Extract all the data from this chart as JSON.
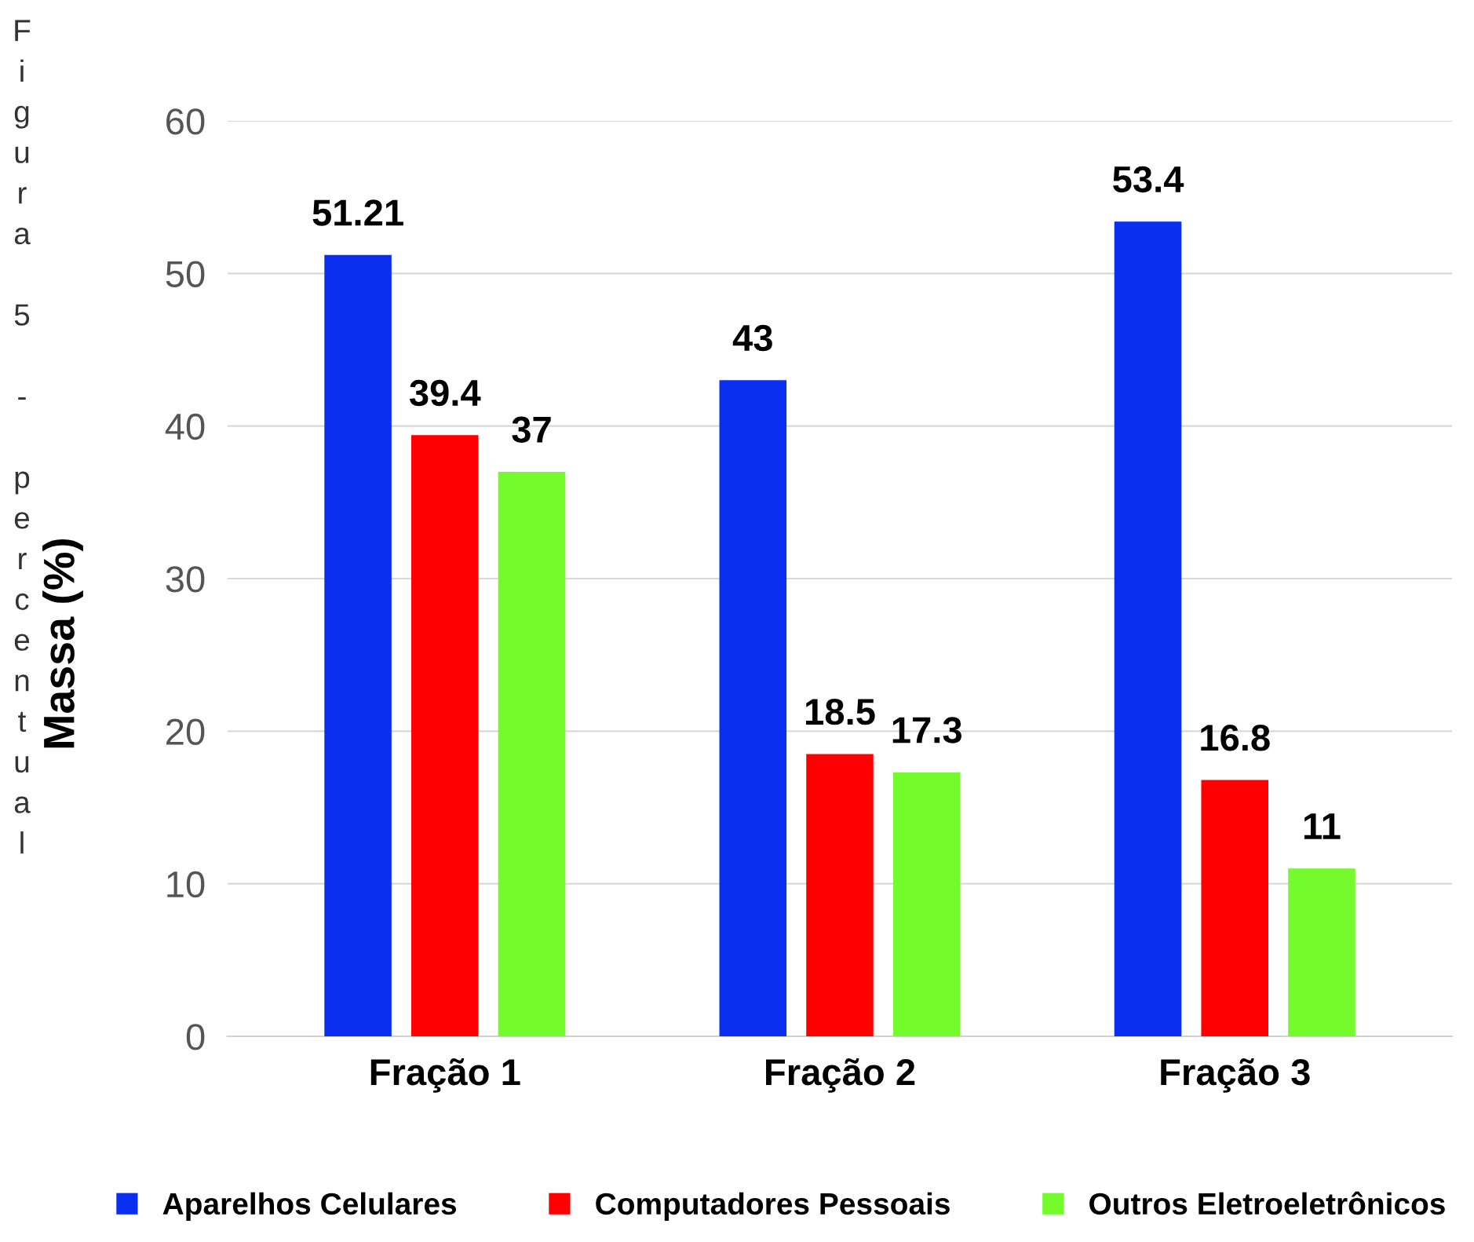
{
  "chart_data": {
    "type": "bar",
    "ylabel": "Massa (%)",
    "categories": [
      "Fração 1",
      "Fração 2",
      "Fração 3"
    ],
    "series": [
      {
        "name": "Aparelhos Celulares",
        "color": "#0b2ff0",
        "values": [
          51.21,
          43,
          53.4
        ]
      },
      {
        "name": "Computadores Pessoais",
        "color": "#ff0000",
        "values": [
          39.4,
          18.5,
          16.8
        ]
      },
      {
        "name": "Outros Eletroeletrônicos",
        "color": "#73fb2c",
        "values": [
          37,
          17.3,
          11
        ]
      }
    ],
    "ylim": [
      0,
      60
    ],
    "yticks": [
      0,
      10,
      20,
      30,
      40,
      50,
      60
    ],
    "grid": "y",
    "legend": "bottom",
    "data_labels": true,
    "annotations": [
      "Figura 5 - percentual"
    ]
  }
}
